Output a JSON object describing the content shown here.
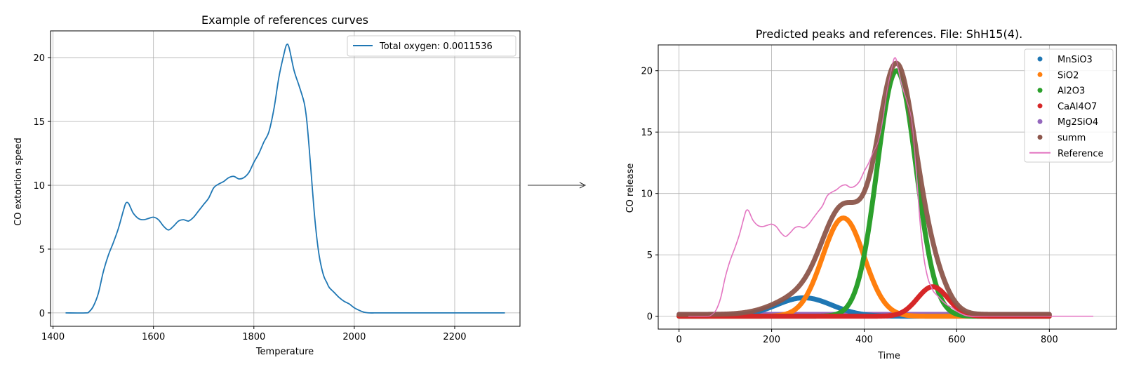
{
  "chart_data": [
    {
      "type": "line",
      "title": "Example of references curves",
      "xlabel": "Temperature",
      "ylabel": "CO extortion speed",
      "xlim": [
        1395,
        2330
      ],
      "ylim": [
        -1.05,
        22.1
      ],
      "xticks": [
        1400,
        1600,
        1800,
        2000,
        2200
      ],
      "yticks": [
        0,
        5,
        10,
        15,
        20
      ],
      "grid": true,
      "legend_position": "upper right",
      "series": [
        {
          "name": "Total oxygen: 0.0011536",
          "color": "#1f77b4",
          "x": [
            1425,
            1465,
            1472,
            1480,
            1490,
            1500,
            1510,
            1520,
            1530,
            1540,
            1545,
            1550,
            1555,
            1560,
            1570,
            1580,
            1590,
            1600,
            1610,
            1620,
            1630,
            1640,
            1650,
            1660,
            1670,
            1680,
            1690,
            1700,
            1710,
            1720,
            1730,
            1740,
            1750,
            1760,
            1770,
            1780,
            1790,
            1800,
            1810,
            1820,
            1830,
            1840,
            1850,
            1860,
            1865,
            1870,
            1880,
            1890,
            1900,
            1905,
            1910,
            1915,
            1920,
            1925,
            1930,
            1935,
            1940,
            1945,
            1950,
            1960,
            1970,
            1980,
            1990,
            2000,
            2010,
            2020,
            2030,
            2040,
            2050,
            2300
          ],
          "y": [
            0,
            0,
            0.1,
            0.5,
            1.5,
            3.2,
            4.5,
            5.5,
            6.6,
            8.0,
            8.6,
            8.6,
            8.2,
            7.8,
            7.4,
            7.3,
            7.4,
            7.5,
            7.3,
            6.8,
            6.5,
            6.8,
            7.2,
            7.3,
            7.2,
            7.5,
            8.0,
            8.5,
            9.0,
            9.8,
            10.1,
            10.3,
            10.6,
            10.7,
            10.5,
            10.6,
            11.0,
            11.8,
            12.5,
            13.4,
            14.2,
            16.0,
            18.5,
            20.3,
            21.0,
            20.8,
            19.0,
            17.8,
            16.5,
            15.2,
            13.0,
            10.5,
            8.0,
            6.0,
            4.5,
            3.5,
            2.8,
            2.4,
            2.0,
            1.6,
            1.2,
            0.9,
            0.7,
            0.4,
            0.2,
            0.05,
            0,
            0,
            0,
            0
          ]
        }
      ]
    },
    {
      "type": "scatter",
      "title": "Predicted peaks and references. File: ShH15(4).",
      "xlabel": "Time",
      "ylabel": "CO release",
      "xlim": [
        -45,
        945
      ],
      "ylim": [
        -1.05,
        22.1
      ],
      "xticks": [
        0,
        200,
        400,
        600,
        800
      ],
      "yticks": [
        0,
        5,
        10,
        15,
        20
      ],
      "grid": true,
      "legend_position": "upper right",
      "peaks": [
        {
          "name": "MnSiO3",
          "color": "#1f77b4",
          "amp": 1.5,
          "center": 270,
          "width": 60
        },
        {
          "name": "SiO2",
          "color": "#ff7f0e",
          "amp": 8.0,
          "center": 355,
          "width": 45
        },
        {
          "name": "Al2O3",
          "color": "#2ca02c",
          "amp": 20.0,
          "center": 470,
          "width": 42
        },
        {
          "name": "CaAl4O7",
          "color": "#d62728",
          "amp": 2.4,
          "center": 548,
          "width": 33
        },
        {
          "name": "Mg2SiO4",
          "color": "#9467bd",
          "amp": 0.15,
          "center": 400,
          "width": 2000
        }
      ],
      "sum_series": {
        "name": "summ",
        "color": "#8c564b"
      },
      "reference": {
        "name": "Reference",
        "color": "#e377c2",
        "x": [
          20,
          60,
          70,
          80,
          90,
          100,
          110,
          120,
          130,
          140,
          145,
          150,
          155,
          160,
          170,
          180,
          190,
          200,
          210,
          220,
          230,
          240,
          250,
          260,
          270,
          280,
          290,
          300,
          310,
          320,
          330,
          340,
          350,
          360,
          370,
          380,
          390,
          400,
          410,
          420,
          430,
          440,
          450,
          460,
          465,
          470,
          480,
          490,
          500,
          505,
          510,
          515,
          520,
          525,
          530,
          535,
          540,
          545,
          550,
          560,
          570,
          580,
          590,
          600,
          610,
          620,
          630,
          640,
          650,
          895
        ],
        "y": [
          0,
          0,
          0.1,
          0.5,
          1.5,
          3.2,
          4.5,
          5.5,
          6.6,
          8.0,
          8.6,
          8.6,
          8.2,
          7.8,
          7.4,
          7.3,
          7.4,
          7.5,
          7.3,
          6.8,
          6.5,
          6.8,
          7.2,
          7.3,
          7.2,
          7.5,
          8.0,
          8.5,
          9.0,
          9.8,
          10.1,
          10.3,
          10.6,
          10.7,
          10.5,
          10.6,
          11.0,
          11.8,
          12.5,
          13.4,
          14.2,
          16.0,
          18.5,
          20.3,
          21.0,
          20.8,
          19.0,
          17.8,
          16.5,
          15.2,
          13.0,
          10.5,
          8.0,
          6.0,
          4.5,
          3.5,
          2.8,
          2.4,
          2.0,
          1.6,
          1.2,
          0.9,
          0.7,
          0.4,
          0.2,
          0.05,
          0,
          0,
          0,
          0
        ]
      },
      "time_range": [
        0,
        800
      ]
    }
  ]
}
